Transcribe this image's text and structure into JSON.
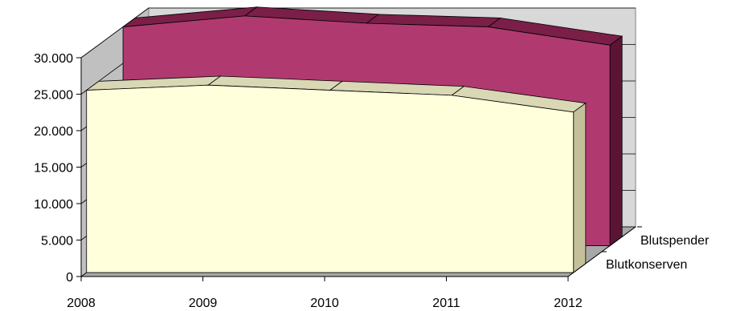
{
  "chart_data": {
    "type": "area",
    "style": "3d",
    "categories": [
      "2008",
      "2009",
      "2010",
      "2011",
      "2012"
    ],
    "y_tick_labels": [
      "0",
      "5.000",
      "10.000",
      "15.000",
      "20.000",
      "25.000",
      "30.000"
    ],
    "ylim": [
      0,
      30000
    ],
    "grid": true,
    "series": [
      {
        "name": "Blutspender",
        "values": [
          30000,
          31500,
          30500,
          30000,
          27500
        ],
        "front_color": "#b03a70",
        "top_color": "#7a1f47",
        "side_color": "#5c1434"
      },
      {
        "name": "Blutkonserven",
        "values": [
          25000,
          25700,
          25000,
          24300,
          22000
        ],
        "front_color": "#ffffdc",
        "top_color": "#d9d7b4",
        "side_color": "#c4c19a"
      }
    ],
    "wall_color": "#c0c0c0",
    "floor_color": "#a8a8a8"
  }
}
